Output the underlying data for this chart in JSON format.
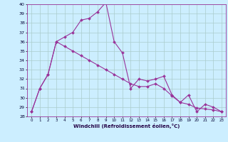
{
  "bg_color": "#cceeff",
  "grid_color": "#aacccc",
  "line_color": "#993399",
  "s1_x": [
    0,
    1,
    2,
    3,
    4,
    5,
    6,
    7,
    8,
    9,
    10,
    11,
    12,
    13,
    14,
    15,
    16,
    17,
    18,
    19,
    20,
    21,
    22,
    23
  ],
  "s1_y": [
    28.5,
    31.0,
    32.5,
    36.0,
    36.5,
    37.0,
    38.3,
    38.5,
    39.2,
    40.2,
    36.0,
    34.8,
    31.0,
    32.0,
    31.8,
    32.0,
    32.3,
    30.3,
    29.5,
    30.3,
    28.5,
    29.3,
    29.0,
    28.5
  ],
  "s2_x": [
    0,
    1,
    2,
    3,
    4,
    5,
    6,
    7,
    8,
    9,
    10,
    11,
    12,
    13,
    14,
    15,
    16,
    17,
    18,
    19,
    20,
    21,
    22,
    23
  ],
  "s2_y": [
    28.5,
    31.0,
    32.5,
    36.0,
    35.5,
    35.0,
    34.5,
    34.0,
    33.5,
    33.0,
    32.5,
    32.0,
    31.5,
    31.2,
    31.2,
    31.5,
    31.0,
    30.2,
    29.5,
    29.3,
    28.9,
    28.8,
    28.7,
    28.5
  ],
  "xlabel": "Windchill (Refroidissement éolien,°C)",
  "ylim": [
    28,
    40
  ],
  "xlim": [
    -0.5,
    23.5
  ],
  "ytick_min": 28,
  "ytick_max": 40,
  "xtick_count": 24
}
